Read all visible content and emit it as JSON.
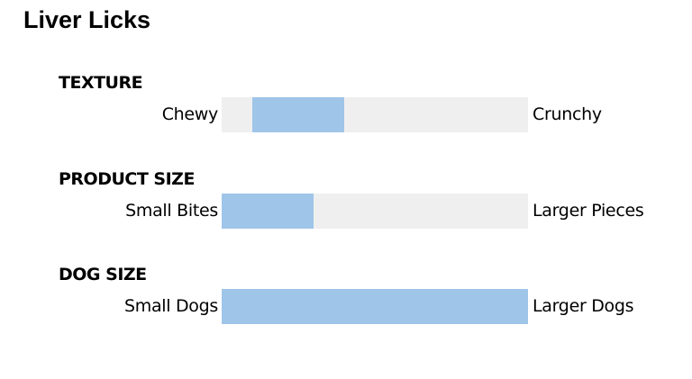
{
  "title": "Liver Licks",
  "colors": {
    "track": "#efefef",
    "fill": "#9fc5e8"
  },
  "chart_data": {
    "type": "bar",
    "title": "Liver Licks",
    "scales": [
      {
        "heading": "TEXTURE",
        "left_label": "Chewy",
        "right_label": "Crunchy",
        "range": [
          0.1,
          0.4
        ]
      },
      {
        "heading": "PRODUCT SIZE",
        "left_label": "Small Bites",
        "right_label": "Larger Pieces",
        "range": [
          0.0,
          0.3
        ]
      },
      {
        "heading": "DOG SIZE",
        "left_label": "Small Dogs",
        "right_label": "Larger Dogs",
        "range": [
          0.0,
          1.0
        ]
      }
    ]
  }
}
